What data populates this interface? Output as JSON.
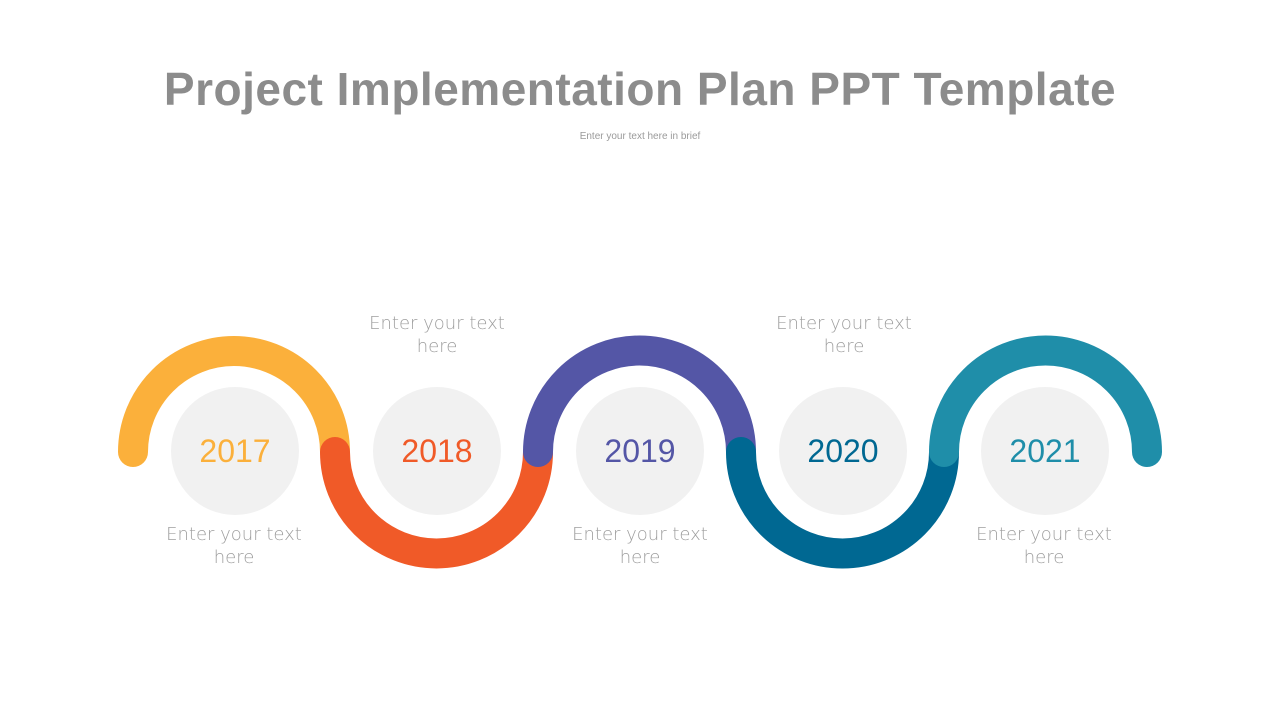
{
  "title": "Project Implementation Plan PPT Template",
  "subtitle": "Enter your text here in brief",
  "steps": [
    {
      "year": "2017",
      "color": "#fbb03b",
      "caption_line1": "Enter your text",
      "caption_line2": "here"
    },
    {
      "year": "2018",
      "color": "#f05a28",
      "caption_line1": "Enter your text",
      "caption_line2": "here"
    },
    {
      "year": "2019",
      "color": "#5456a6",
      "caption_line1": "Enter your text",
      "caption_line2": "here"
    },
    {
      "year": "2020",
      "color": "#006892",
      "caption_line1": "Enter your text",
      "caption_line2": "here"
    },
    {
      "year": "2021",
      "color": "#1f8ea9",
      "caption_line1": "Enter your text",
      "caption_line2": "here"
    }
  ]
}
